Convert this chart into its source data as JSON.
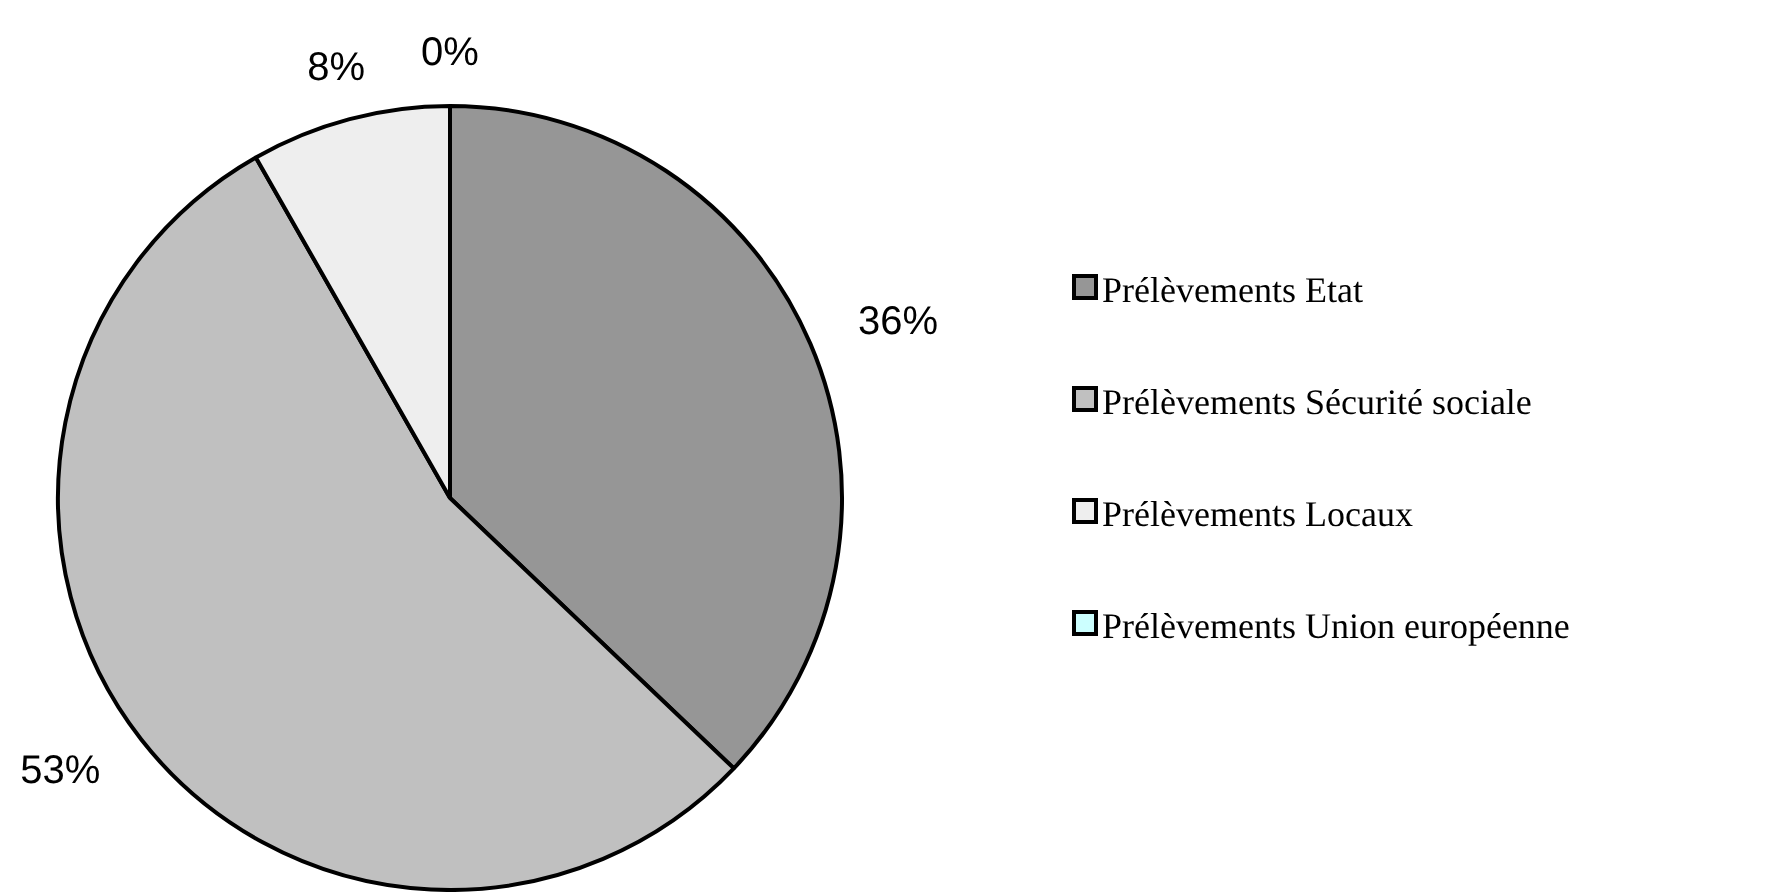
{
  "chart_data": {
    "type": "pie",
    "categories": [
      "Prélèvements Etat",
      "Prélèvements Sécurité sociale",
      "Prélèvements Locaux",
      "Prélèvements Union européenne"
    ],
    "values": [
      36,
      53,
      8,
      0
    ],
    "value_labels": [
      "36%",
      "53%",
      "8%",
      "0%"
    ],
    "colors": [
      "#969696",
      "#c0c0c0",
      "#eeeeee",
      "#ccffff"
    ],
    "legend": "right"
  }
}
